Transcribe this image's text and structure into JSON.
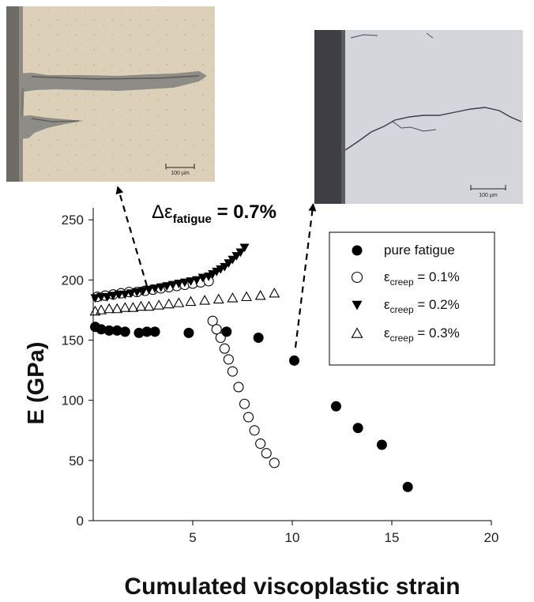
{
  "chart_data": {
    "type": "scatter",
    "xlabel": "Cumulated viscoplastic strain",
    "ylabel": "E (GPa)",
    "xlim": [
      0,
      20
    ],
    "ylim": [
      0,
      260
    ],
    "xticks": [
      5,
      10,
      15,
      20
    ],
    "yticks": [
      0,
      50,
      100,
      150,
      200,
      250
    ],
    "grid": false,
    "legend_position": "right",
    "series": [
      {
        "name": "pure fatigue",
        "marker": "filled-circle",
        "color": "#000000",
        "points": [
          [
            0.1,
            161
          ],
          [
            0.4,
            159
          ],
          [
            0.8,
            158
          ],
          [
            1.2,
            158
          ],
          [
            1.6,
            157
          ],
          [
            2.3,
            156
          ],
          [
            2.7,
            157
          ],
          [
            3.1,
            157
          ],
          [
            4.8,
            156
          ],
          [
            6.7,
            157
          ],
          [
            8.3,
            152
          ],
          [
            10.1,
            133
          ],
          [
            12.2,
            95
          ],
          [
            13.3,
            77
          ],
          [
            14.5,
            63
          ],
          [
            15.8,
            28
          ]
        ]
      },
      {
        "name": "ε creep = 0.1%",
        "legend_symbol": "ε",
        "legend_sub": "creep",
        "legend_value": " = 0.1%",
        "marker": "open-circle",
        "color": "#000000",
        "points": [
          [
            0.2,
            186
          ],
          [
            0.6,
            187
          ],
          [
            1.0,
            188
          ],
          [
            1.4,
            189
          ],
          [
            1.8,
            190
          ],
          [
            2.2,
            190
          ],
          [
            2.6,
            191
          ],
          [
            3.0,
            192
          ],
          [
            3.4,
            193
          ],
          [
            3.8,
            194
          ],
          [
            4.2,
            195
          ],
          [
            4.6,
            196
          ],
          [
            5.0,
            197
          ],
          [
            5.4,
            198
          ],
          [
            5.8,
            199
          ],
          [
            6.0,
            166
          ],
          [
            6.2,
            159
          ],
          [
            6.4,
            152
          ],
          [
            6.6,
            143
          ],
          [
            6.8,
            134
          ],
          [
            7.0,
            124
          ],
          [
            7.3,
            111
          ],
          [
            7.6,
            97
          ],
          [
            7.8,
            86
          ],
          [
            8.1,
            75
          ],
          [
            8.4,
            64
          ],
          [
            8.7,
            56
          ],
          [
            9.1,
            48
          ]
        ]
      },
      {
        "name": "ε creep = 0.2%",
        "legend_symbol": "ε",
        "legend_sub": "creep",
        "legend_value": " = 0.2%",
        "marker": "filled-triangle-down",
        "color": "#000000",
        "points": [
          [
            0.1,
            185
          ],
          [
            0.4,
            186
          ],
          [
            0.7,
            186
          ],
          [
            1.0,
            187
          ],
          [
            1.3,
            188
          ],
          [
            1.6,
            188
          ],
          [
            1.9,
            189
          ],
          [
            2.2,
            190
          ],
          [
            2.5,
            191
          ],
          [
            2.8,
            192
          ],
          [
            3.1,
            193
          ],
          [
            3.4,
            194
          ],
          [
            3.7,
            195
          ],
          [
            4.0,
            196
          ],
          [
            4.3,
            197
          ],
          [
            4.6,
            198
          ],
          [
            4.9,
            199
          ],
          [
            5.2,
            200
          ],
          [
            5.5,
            202
          ],
          [
            5.8,
            203
          ],
          [
            6.0,
            205
          ],
          [
            6.2,
            207
          ],
          [
            6.4,
            209
          ],
          [
            6.6,
            211
          ],
          [
            6.8,
            214
          ],
          [
            7.0,
            217
          ],
          [
            7.2,
            220
          ],
          [
            7.4,
            223
          ],
          [
            7.6,
            227
          ]
        ]
      },
      {
        "name": "ε creep = 0.3%",
        "legend_symbol": "ε",
        "legend_sub": "creep",
        "legend_value": " = 0.3%",
        "marker": "open-triangle-up",
        "color": "#000000",
        "points": [
          [
            0.1,
            174
          ],
          [
            0.4,
            175
          ],
          [
            0.8,
            176
          ],
          [
            1.2,
            176
          ],
          [
            1.6,
            177
          ],
          [
            2.0,
            177
          ],
          [
            2.4,
            178
          ],
          [
            2.8,
            178
          ],
          [
            3.3,
            179
          ],
          [
            3.8,
            180
          ],
          [
            4.3,
            181
          ],
          [
            4.9,
            182
          ],
          [
            5.6,
            183
          ],
          [
            6.3,
            184
          ],
          [
            7.0,
            185
          ],
          [
            7.7,
            186
          ],
          [
            8.4,
            187
          ],
          [
            9.1,
            189
          ]
        ]
      }
    ],
    "annotation": {
      "prefix": "Δε",
      "sub": "fatigue",
      "value": " = 0.7%"
    }
  }
}
